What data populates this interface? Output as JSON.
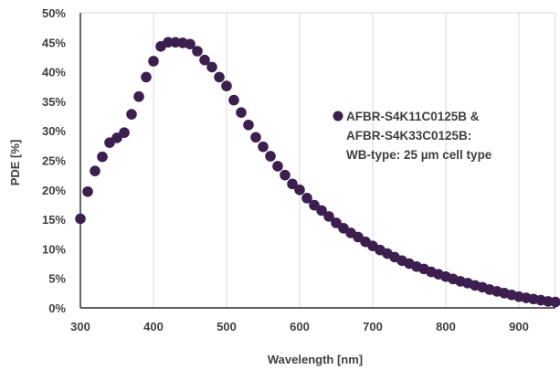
{
  "chart_data": {
    "type": "scatter",
    "xlabel": "Wavelength [nm]",
    "ylabel": "PDE [%]",
    "xlim": [
      300,
      950
    ],
    "ylim": [
      0,
      50
    ],
    "x_ticks": [
      300,
      400,
      500,
      600,
      700,
      800,
      900
    ],
    "y_ticks": [
      "0%",
      "5%",
      "10%",
      "15%",
      "20%",
      "25%",
      "30%",
      "35%",
      "40%",
      "45%",
      "50%"
    ],
    "grid": "vertical",
    "legend_position": "right",
    "colors": {
      "marker": "#3d1f4f",
      "grid": "#d9d9d9",
      "axis": "#000000",
      "text": "#404040"
    },
    "series": [
      {
        "name": "AFBR-S4K11C0125B & AFBR-S4K33C0125B: WB-type: 25 µm cell type",
        "legend_lines": [
          "AFBR-S4K11C0125B &",
          "AFBR-S4K33C0125B:",
          "WB-type: 25 µm cell type"
        ],
        "x": [
          300,
          310,
          320,
          330,
          340,
          350,
          360,
          370,
          380,
          390,
          400,
          410,
          420,
          430,
          440,
          450,
          460,
          470,
          480,
          490,
          500,
          510,
          520,
          530,
          540,
          550,
          560,
          570,
          580,
          590,
          600,
          610,
          620,
          630,
          640,
          650,
          660,
          670,
          680,
          690,
          700,
          710,
          720,
          730,
          740,
          750,
          760,
          770,
          780,
          790,
          800,
          810,
          820,
          830,
          840,
          850,
          860,
          870,
          880,
          890,
          900,
          910,
          920,
          930,
          940,
          950
        ],
        "values": [
          15.1,
          19.7,
          23.2,
          25.6,
          28.0,
          28.8,
          29.7,
          32.8,
          35.8,
          39.1,
          41.8,
          44.3,
          45.0,
          45.0,
          44.9,
          44.7,
          43.5,
          42.0,
          40.8,
          39.1,
          37.6,
          35.2,
          33.1,
          31.0,
          28.9,
          27.3,
          25.7,
          24.0,
          22.5,
          21.0,
          20.0,
          18.6,
          17.4,
          16.5,
          15.5,
          14.4,
          13.5,
          12.7,
          12.0,
          11.2,
          10.5,
          9.8,
          9.2,
          8.6,
          8.0,
          7.5,
          7.0,
          6.6,
          6.1,
          5.7,
          5.3,
          4.9,
          4.5,
          4.2,
          3.8,
          3.5,
          3.1,
          2.8,
          2.5,
          2.2,
          1.9,
          1.7,
          1.5,
          1.3,
          1.1,
          1.0
        ]
      }
    ]
  }
}
